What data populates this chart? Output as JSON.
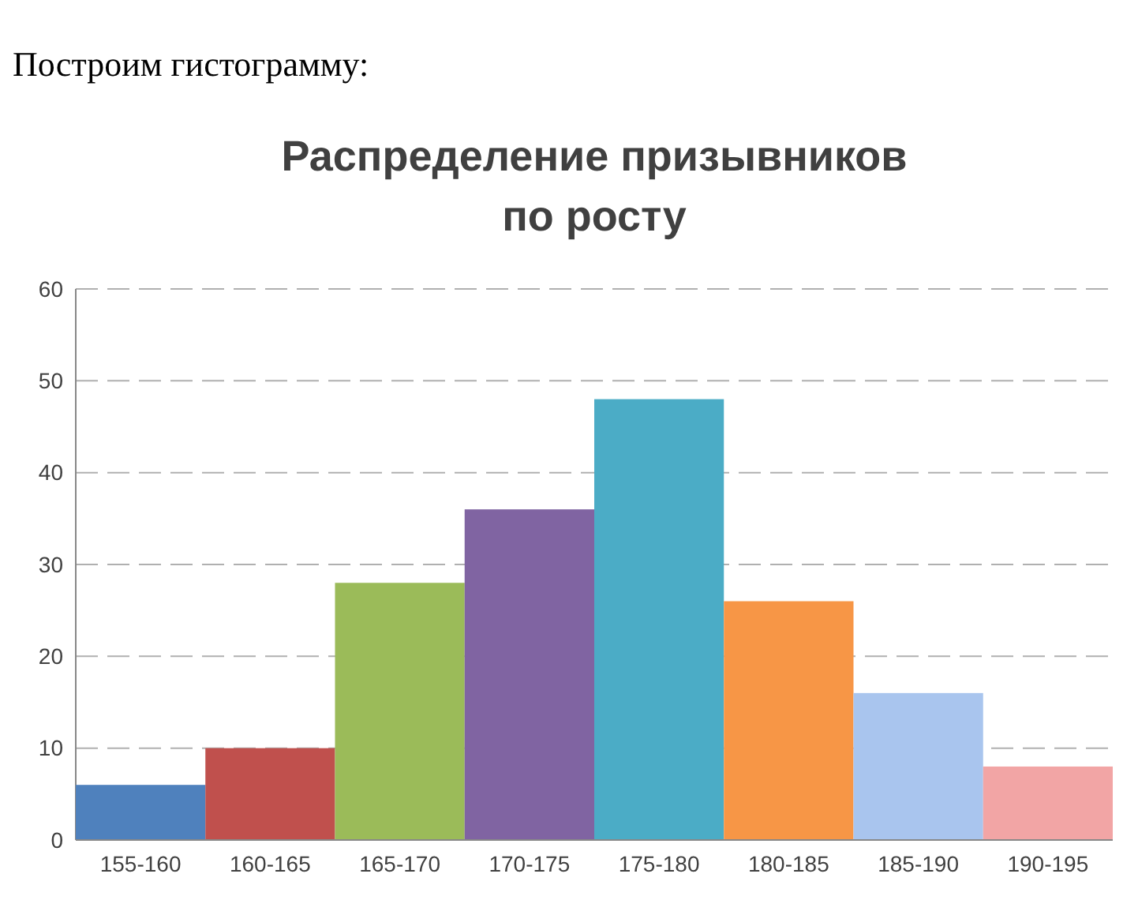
{
  "chart_data": {
    "type": "bar",
    "title": "Распределение призывников по росту",
    "annotations": [
      "Построим гистограмму:"
    ],
    "categories": [
      "155-160",
      "160-165",
      "165-170",
      "170-175",
      "175-180",
      "180-185",
      "185-190",
      "190-195"
    ],
    "values": [
      6,
      10,
      28,
      36,
      48,
      26,
      16,
      8
    ],
    "colors": [
      "#4f81bd",
      "#c0504d",
      "#9bbb59",
      "#8064a2",
      "#4bacc6",
      "#f79646",
      "#a9c5ee",
      "#f2a5a5"
    ],
    "ylim": [
      0,
      60
    ],
    "yticks": [
      0,
      10,
      20,
      30,
      40,
      50,
      60
    ],
    "grid": "y"
  }
}
